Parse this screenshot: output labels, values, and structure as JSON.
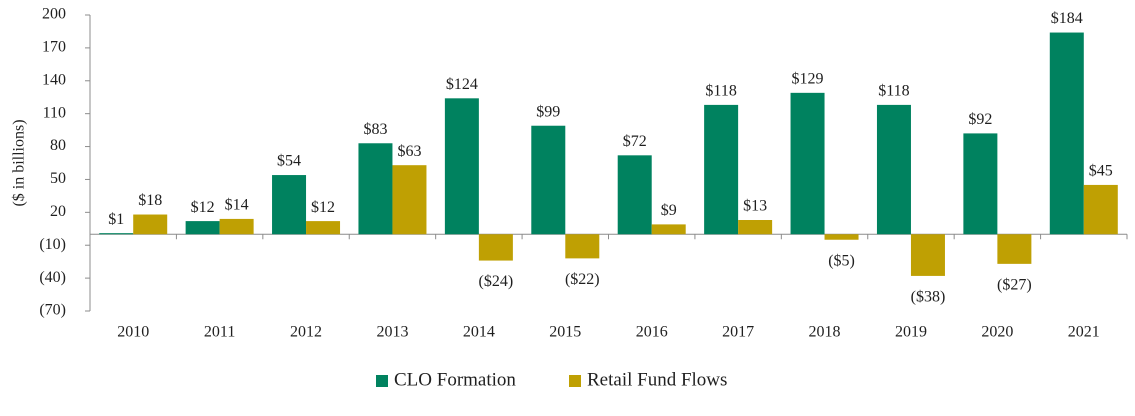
{
  "chart_data": {
    "type": "bar",
    "categories": [
      "2010",
      "2011",
      "2012",
      "2013",
      "2014",
      "2015",
      "2016",
      "2017",
      "2018",
      "2019",
      "2020",
      "2021"
    ],
    "series": [
      {
        "name": "CLO Formation",
        "color": "#00825F",
        "values": [
          1,
          12,
          54,
          83,
          124,
          99,
          72,
          118,
          129,
          118,
          92,
          184
        ],
        "labels": [
          "$1",
          "$12",
          "$54",
          "$83",
          "$124",
          "$99",
          "$72",
          "$118",
          "$129",
          "$118",
          "$92",
          "$184"
        ]
      },
      {
        "name": "Retail Fund Flows",
        "color": "#BFA003",
        "values": [
          18,
          14,
          12,
          63,
          -24,
          -22,
          9,
          13,
          -5,
          -38,
          -27,
          45
        ],
        "labels": [
          "$18",
          "$14",
          "$12",
          "$63",
          "($24)",
          "($22)",
          "$9",
          "$13",
          "($5)",
          "($38)",
          "($27)",
          "$45"
        ]
      }
    ],
    "ylabel": "($ in billions)",
    "ylim": [
      -70,
      200
    ],
    "yticks": [
      200,
      170,
      140,
      110,
      80,
      50,
      20,
      -10,
      -40,
      -70
    ],
    "ytick_labels": [
      "200",
      "170",
      "140",
      "110",
      "80",
      "50",
      "20",
      "(10)",
      "(40)",
      "(70)"
    ],
    "grid": false,
    "legend_position": "bottom-center"
  }
}
